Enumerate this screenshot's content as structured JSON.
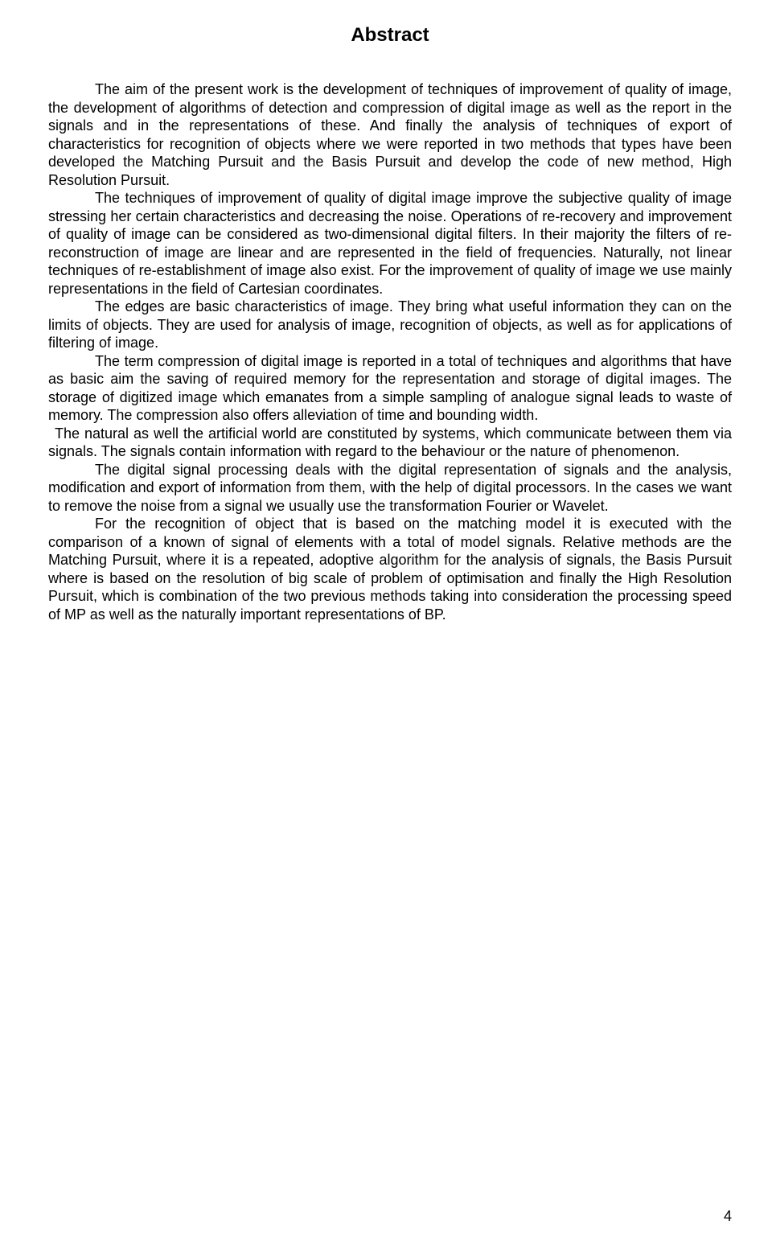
{
  "title": "Abstract",
  "paragraphs": {
    "p1": "The aim of the present work is the development of techniques of improvement of quality of image, the development of algorithms of detection and compression of digital image as well as the report in the signals and in the representations of these. And finally the analysis of techniques of export of characteristics for recognition of objects where we were reported in two methods that types have been developed the  Matching Pursuit and the Basis Pursuit  and develop the code of new method,  High Resolution Pursuit.",
    "p2": "The techniques of improvement of quality of digital image improve the subjective quality of image stressing her certain characteristics and decreasing the noise. Operations of re-recovery and improvement of quality of image can be considered as two-dimensional digital filters. In their majority the filters of re-reconstruction of image are linear and are represented in the field of frequencies. Naturally, not linear techniques of re-establishment of image also exist. For the improvement of quality of image we use mainly representations in the field of Cartesian coordinates.",
    "p3": "The edges are basic characteristics of image. They bring what useful information they can on the limits of objects. They are used for analysis of image, recognition of objects, as well as for applications of filtering of image.",
    "p4": "The term compression of digital image is reported in a total of techniques and algorithms that have as basic aim the saving of required memory for the representation and storage of digital images. The storage of digitized image which emanates from a simple sampling of analogue signal leads to waste of memory.  The compression also offers alleviation of time and    bounding width.",
    "p5": "The natural as well the artificial world are constituted by systems, which communicate between them via signals.  The signals contain information with regard to the behaviour or the nature of phenomenon.",
    "p6": "The digital signal processing deals with the digital representation of signals and the analysis,   modification and export of information from them, with the help of digital processors.  In the cases we want to remove the noise from a signal we usually use the transformation Fourier or Wavelet.",
    "p7": "For the recognition of object that is based on the matching model it is executed with the comparison of a known of signal of elements with a total of model signals.  Relative methods are the Matching Pursuit, where it is a repeated, adoptive algorithm for the analysis of signals, the Basis Pursuit where is based on the resolution of big scale of problem of optimisation and finally the  High Resolution Pursuit, which is combination of the two previous methods taking into consideration the processing speed of  MP as well as the naturally important representations of BP."
  },
  "page_number": "4",
  "colors": {
    "background": "#ffffff",
    "text": "#000000"
  },
  "typography": {
    "title_fontsize": 24,
    "title_weight": "bold",
    "body_fontsize": 18,
    "font_family": "Arial"
  }
}
